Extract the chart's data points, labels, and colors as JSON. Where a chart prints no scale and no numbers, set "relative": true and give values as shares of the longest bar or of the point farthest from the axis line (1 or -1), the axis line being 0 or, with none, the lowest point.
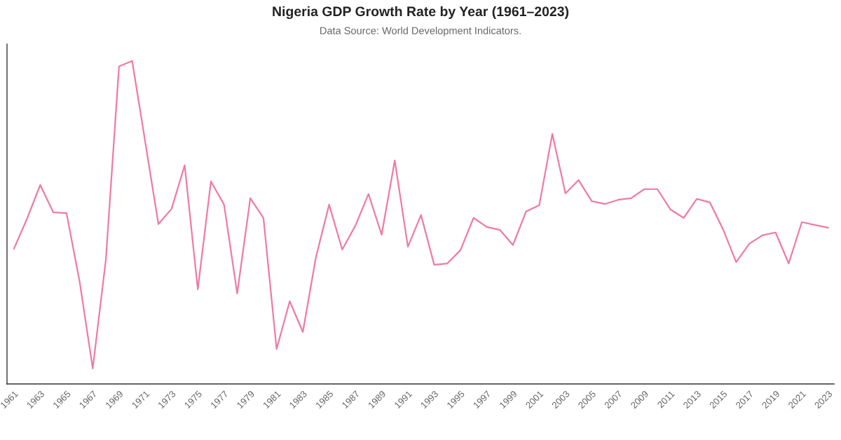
{
  "chart_data": {
    "type": "line",
    "title": "Nigeria GDP Growth Rate by Year (1961–2023)",
    "subtitle": "Data Source: World Development Indicators.",
    "categories": [
      "1961",
      null,
      "1963",
      null,
      "1965",
      null,
      "1967",
      null,
      "1969",
      null,
      "1971",
      null,
      "1973",
      null,
      "1975",
      null,
      "1977",
      null,
      "1979",
      null,
      "1981",
      null,
      "1983",
      null,
      "1985",
      null,
      "1987",
      null,
      "1989",
      null,
      "1991",
      null,
      "1993",
      null,
      "1995",
      null,
      "1997",
      null,
      "1999",
      null,
      "2001",
      null,
      "2003",
      null,
      "2005",
      null,
      "2007",
      null,
      "2009",
      null,
      "2011",
      null,
      "2013",
      null,
      "2015",
      null,
      "2017",
      null,
      "2019",
      null,
      "2021",
      null,
      "2023"
    ],
    "series": [
      {
        "color": "#f07aa4",
        "values": [
          0.419,
          0.512,
          0.616,
          0.531,
          0.529,
          0.317,
          0.048,
          0.386,
          0.983,
          1.0,
          0.748,
          0.495,
          0.542,
          0.677,
          0.293,
          0.627,
          0.555,
          0.28,
          0.575,
          0.514,
          0.108,
          0.256,
          0.161,
          0.393,
          0.555,
          0.416,
          0.49,
          0.588,
          0.462,
          0.692,
          0.425,
          0.523,
          0.369,
          0.373,
          0.414,
          0.514,
          0.486,
          0.477,
          0.43,
          0.534,
          0.553,
          0.774,
          0.59,
          0.631,
          0.566,
          0.557,
          0.57,
          0.575,
          0.603,
          0.603,
          0.54,
          0.514,
          0.573,
          0.562,
          0.479,
          0.377,
          0.434,
          0.46,
          0.469,
          0.373,
          0.501,
          0.492,
          0.484
        ]
      }
    ],
    "relative": true,
    "line_style": "solid"
  }
}
